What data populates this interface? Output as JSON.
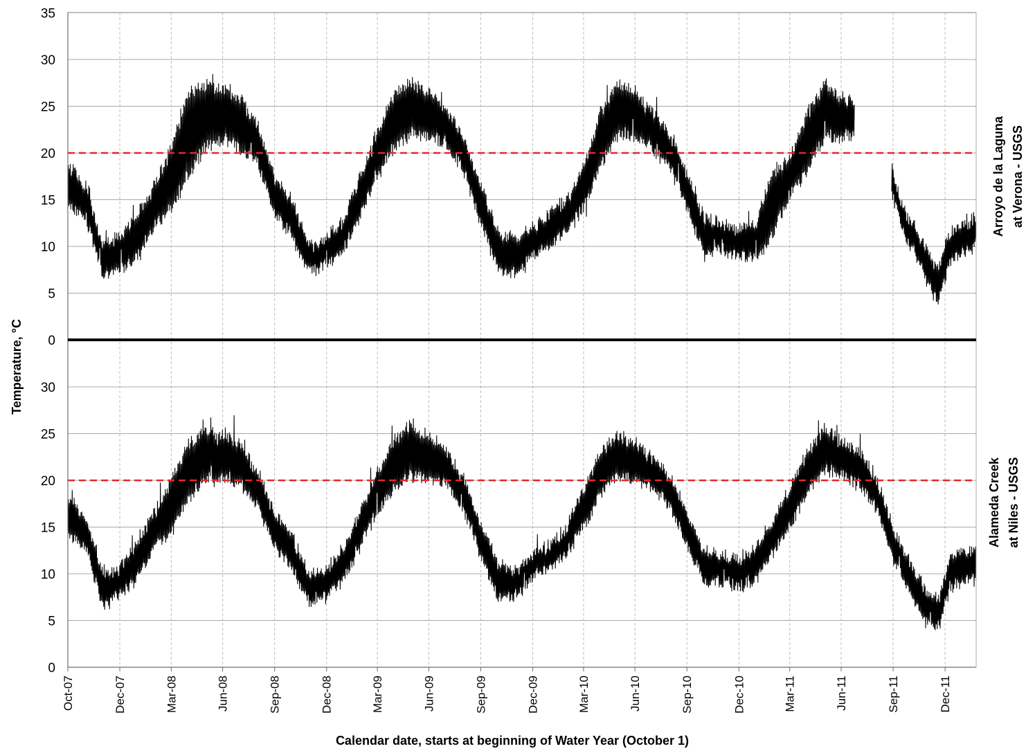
{
  "chart_data": {
    "type": "line",
    "xlabel": "Calendar date, starts at beginning of Water Year (October 1)",
    "ylabel": "Temperature, °C",
    "x_tick_labels": [
      "Oct-07",
      "Dec-07",
      "Mar-08",
      "Jun-08",
      "Sep-08",
      "Dec-08",
      "Mar-09",
      "Jun-09",
      "Sep-09",
      "Dec-09",
      "Mar-10",
      "Jun-10",
      "Sep-10",
      "Dec-10",
      "Mar-11",
      "Jun-11",
      "Sep-11",
      "Dec-11"
    ],
    "x_range": [
      "2007-10-01",
      "2012-02-25"
    ],
    "grid": true,
    "threshold": {
      "value": 20,
      "color": "#e8262a",
      "style": "dashed"
    },
    "panels": [
      {
        "name": "Arroyo de la Laguna at Verona - USGS",
        "label_lines": [
          "Arroyo de la Laguna",
          "at Verona - USGS"
        ],
        "ylim": [
          0,
          35
        ],
        "yticks": [
          0,
          5,
          10,
          15,
          20,
          25,
          30,
          35
        ],
        "gap": [
          "2011-07-25",
          "2011-09-28"
        ],
        "series_envelope": [
          {
            "x": "2007-10-01",
            "min": 14.0,
            "max": 19.5
          },
          {
            "x": "2007-11-01",
            "min": 12.5,
            "max": 17.0
          },
          {
            "x": "2007-12-01",
            "min": 6.5,
            "max": 11.0
          },
          {
            "x": "2008-01-01",
            "min": 7.0,
            "max": 11.5
          },
          {
            "x": "2008-02-01",
            "min": 8.5,
            "max": 14.0
          },
          {
            "x": "2008-03-01",
            "min": 11.5,
            "max": 17.0
          },
          {
            "x": "2008-04-01",
            "min": 13.5,
            "max": 21.0
          },
          {
            "x": "2008-05-01",
            "min": 17.0,
            "max": 27.0
          },
          {
            "x": "2008-06-01",
            "min": 20.0,
            "max": 28.0
          },
          {
            "x": "2008-07-01",
            "min": 21.0,
            "max": 27.5
          },
          {
            "x": "2008-08-01",
            "min": 20.0,
            "max": 26.5
          },
          {
            "x": "2008-09-01",
            "min": 18.5,
            "max": 23.5
          },
          {
            "x": "2008-10-01",
            "min": 13.0,
            "max": 18.0
          },
          {
            "x": "2008-11-01",
            "min": 10.5,
            "max": 15.5
          },
          {
            "x": "2008-12-01",
            "min": 6.5,
            "max": 10.5
          },
          {
            "x": "2009-01-01",
            "min": 7.5,
            "max": 11.5
          },
          {
            "x": "2009-02-01",
            "min": 9.0,
            "max": 13.5
          },
          {
            "x": "2009-03-01",
            "min": 12.5,
            "max": 18.0
          },
          {
            "x": "2009-04-01",
            "min": 17.0,
            "max": 22.5
          },
          {
            "x": "2009-05-01",
            "min": 20.0,
            "max": 27.0
          },
          {
            "x": "2009-06-01",
            "min": 21.5,
            "max": 28.0
          },
          {
            "x": "2009-07-01",
            "min": 21.0,
            "max": 27.0
          },
          {
            "x": "2009-08-01",
            "min": 20.5,
            "max": 25.5
          },
          {
            "x": "2009-09-01",
            "min": 17.5,
            "max": 22.0
          },
          {
            "x": "2009-10-01",
            "min": 12.0,
            "max": 17.0
          },
          {
            "x": "2009-11-01",
            "min": 7.0,
            "max": 12.0
          },
          {
            "x": "2009-12-01",
            "min": 6.5,
            "max": 11.5
          },
          {
            "x": "2010-01-01",
            "min": 8.5,
            "max": 12.5
          },
          {
            "x": "2010-02-01",
            "min": 9.5,
            "max": 14.0
          },
          {
            "x": "2010-03-01",
            "min": 11.0,
            "max": 15.5
          },
          {
            "x": "2010-04-01",
            "min": 13.5,
            "max": 19.0
          },
          {
            "x": "2010-05-01",
            "min": 18.0,
            "max": 25.0
          },
          {
            "x": "2010-06-01",
            "min": 21.5,
            "max": 28.0
          },
          {
            "x": "2010-07-01",
            "min": 21.0,
            "max": 27.0
          },
          {
            "x": "2010-08-01",
            "min": 20.0,
            "max": 25.0
          },
          {
            "x": "2010-09-01",
            "min": 18.0,
            "max": 22.5
          },
          {
            "x": "2010-10-01",
            "min": 13.5,
            "max": 18.5
          },
          {
            "x": "2010-11-01",
            "min": 8.5,
            "max": 13.5
          },
          {
            "x": "2010-12-01",
            "min": 9.0,
            "max": 13.0
          },
          {
            "x": "2011-01-01",
            "min": 8.5,
            "max": 12.5
          },
          {
            "x": "2011-02-01",
            "min": 8.0,
            "max": 13.0
          },
          {
            "x": "2011-03-01",
            "min": 10.5,
            "max": 18.5
          },
          {
            "x": "2011-04-01",
            "min": 15.0,
            "max": 20.0
          },
          {
            "x": "2011-05-01",
            "min": 17.5,
            "max": 24.5
          },
          {
            "x": "2011-06-01",
            "min": 21.0,
            "max": 28.0
          },
          {
            "x": "2011-07-01",
            "min": 21.0,
            "max": 26.5
          },
          {
            "x": "2011-07-25",
            "min": 21.5,
            "max": 26.0
          },
          {
            "x": "2011-09-28",
            "min": 15.0,
            "max": 19.0
          },
          {
            "x": "2011-10-20",
            "min": 11.0,
            "max": 14.5
          },
          {
            "x": "2011-11-15",
            "min": 8.0,
            "max": 12.0
          },
          {
            "x": "2011-12-05",
            "min": 5.0,
            "max": 9.5
          },
          {
            "x": "2011-12-20",
            "min": 3.5,
            "max": 8.0
          },
          {
            "x": "2012-01-05",
            "min": 7.0,
            "max": 11.5
          },
          {
            "x": "2012-01-25",
            "min": 8.5,
            "max": 13.0
          },
          {
            "x": "2012-02-25",
            "min": 9.5,
            "max": 13.5
          }
        ]
      },
      {
        "name": "Alameda Creek at Niles - USGS",
        "label_lines": [
          "Alameda Creek",
          "at Niles - USGS"
        ],
        "ylim": [
          0,
          35
        ],
        "yticks": [
          0,
          5,
          10,
          15,
          20,
          25,
          30
        ],
        "gap": null,
        "series_envelope": [
          {
            "x": "2007-10-01",
            "min": 13.5,
            "max": 19.0
          },
          {
            "x": "2007-11-01",
            "min": 12.5,
            "max": 16.5
          },
          {
            "x": "2007-12-01",
            "min": 6.0,
            "max": 11.0
          },
          {
            "x": "2008-01-01",
            "min": 7.0,
            "max": 11.0
          },
          {
            "x": "2008-02-01",
            "min": 9.0,
            "max": 14.0
          },
          {
            "x": "2008-03-01",
            "min": 12.0,
            "max": 17.0
          },
          {
            "x": "2008-04-01",
            "min": 14.0,
            "max": 20.5
          },
          {
            "x": "2008-05-01",
            "min": 17.5,
            "max": 24.5
          },
          {
            "x": "2008-06-01",
            "min": 19.5,
            "max": 26.0
          },
          {
            "x": "2008-07-01",
            "min": 19.5,
            "max": 25.5
          },
          {
            "x": "2008-08-01",
            "min": 19.0,
            "max": 24.5
          },
          {
            "x": "2008-09-01",
            "min": 16.5,
            "max": 21.5
          },
          {
            "x": "2008-10-01",
            "min": 12.5,
            "max": 17.0
          },
          {
            "x": "2008-11-01",
            "min": 10.0,
            "max": 14.5
          },
          {
            "x": "2008-12-01",
            "min": 6.5,
            "max": 10.5
          },
          {
            "x": "2009-01-01",
            "min": 7.0,
            "max": 11.0
          },
          {
            "x": "2009-02-01",
            "min": 9.0,
            "max": 13.5
          },
          {
            "x": "2009-03-01",
            "min": 12.5,
            "max": 17.0
          },
          {
            "x": "2009-04-01",
            "min": 16.0,
            "max": 21.5
          },
          {
            "x": "2009-05-01",
            "min": 18.5,
            "max": 25.0
          },
          {
            "x": "2009-06-01",
            "min": 20.0,
            "max": 26.5
          },
          {
            "x": "2009-07-01",
            "min": 19.5,
            "max": 25.0
          },
          {
            "x": "2009-08-01",
            "min": 19.0,
            "max": 24.0
          },
          {
            "x": "2009-09-01",
            "min": 16.0,
            "max": 20.5
          },
          {
            "x": "2009-10-01",
            "min": 11.5,
            "max": 16.0
          },
          {
            "x": "2009-11-01",
            "min": 7.0,
            "max": 11.5
          },
          {
            "x": "2009-12-01",
            "min": 7.0,
            "max": 11.0
          },
          {
            "x": "2010-01-01",
            "min": 9.0,
            "max": 12.5
          },
          {
            "x": "2010-02-01",
            "min": 10.0,
            "max": 13.5
          },
          {
            "x": "2010-03-01",
            "min": 11.5,
            "max": 15.5
          },
          {
            "x": "2010-04-01",
            "min": 14.5,
            "max": 19.5
          },
          {
            "x": "2010-05-01",
            "min": 18.0,
            "max": 23.5
          },
          {
            "x": "2010-06-01",
            "min": 20.0,
            "max": 25.5
          },
          {
            "x": "2010-07-01",
            "min": 19.5,
            "max": 24.5
          },
          {
            "x": "2010-08-01",
            "min": 18.5,
            "max": 23.0
          },
          {
            "x": "2010-09-01",
            "min": 16.5,
            "max": 21.0
          },
          {
            "x": "2010-10-01",
            "min": 12.5,
            "max": 17.0
          },
          {
            "x": "2010-11-01",
            "min": 8.5,
            "max": 13.0
          },
          {
            "x": "2010-12-01",
            "min": 8.5,
            "max": 12.5
          },
          {
            "x": "2011-01-01",
            "min": 8.0,
            "max": 12.0
          },
          {
            "x": "2011-02-01",
            "min": 9.0,
            "max": 13.5
          },
          {
            "x": "2011-03-01",
            "min": 11.5,
            "max": 16.0
          },
          {
            "x": "2011-04-01",
            "min": 14.5,
            "max": 19.5
          },
          {
            "x": "2011-05-01",
            "min": 18.0,
            "max": 23.5
          },
          {
            "x": "2011-06-01",
            "min": 20.5,
            "max": 26.0
          },
          {
            "x": "2011-07-01",
            "min": 20.0,
            "max": 25.0
          },
          {
            "x": "2011-08-01",
            "min": 19.0,
            "max": 23.5
          },
          {
            "x": "2011-09-01",
            "min": 16.5,
            "max": 21.0
          },
          {
            "x": "2011-10-01",
            "min": 11.0,
            "max": 15.5
          },
          {
            "x": "2011-11-01",
            "min": 7.5,
            "max": 11.5
          },
          {
            "x": "2011-12-01",
            "min": 4.0,
            "max": 8.5
          },
          {
            "x": "2011-12-20",
            "min": 3.5,
            "max": 7.5
          },
          {
            "x": "2012-01-10",
            "min": 8.0,
            "max": 12.5
          },
          {
            "x": "2012-02-01",
            "min": 8.5,
            "max": 13.0
          },
          {
            "x": "2012-02-25",
            "min": 9.0,
            "max": 13.0
          }
        ]
      }
    ]
  }
}
